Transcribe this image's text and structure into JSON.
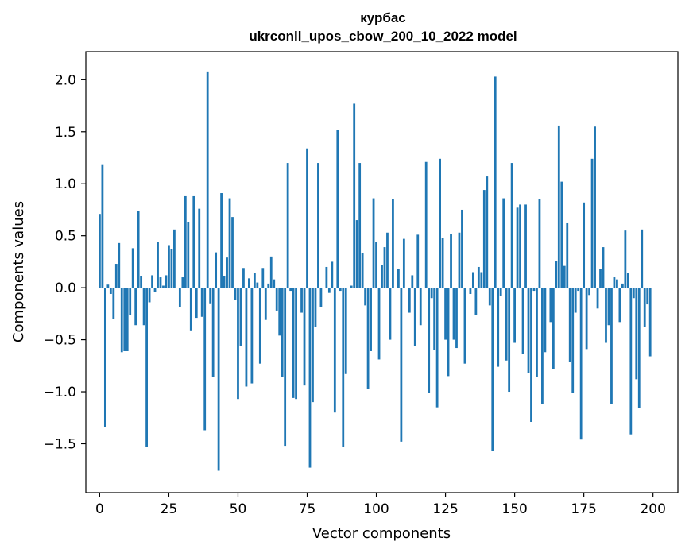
{
  "chart_data": {
    "type": "bar",
    "title_line1": "курбас",
    "title_line2": "ukrconll_upos_cbow_200_10_2022 model",
    "xlabel": "Vector components",
    "ylabel": "Components values",
    "xlim": [
      -5,
      209
    ],
    "ylim": [
      -1.97,
      2.27
    ],
    "xticks": [
      0,
      25,
      50,
      75,
      100,
      125,
      150,
      175,
      200
    ],
    "yticks": [
      -1.5,
      -1.0,
      -0.5,
      0.0,
      0.5,
      1.0,
      1.5,
      2.0
    ],
    "ytick_labels": [
      "−1.5",
      "−1.0",
      "−0.5",
      "0.0",
      "0.5",
      "1.0",
      "1.5",
      "2.0"
    ],
    "bar_color": "#1f77b4",
    "values": [
      0.71,
      1.18,
      -1.34,
      0.03,
      -0.06,
      -0.3,
      0.23,
      0.43,
      -0.62,
      -0.61,
      -0.61,
      -0.26,
      0.38,
      -0.36,
      0.74,
      0.11,
      -0.36,
      -1.53,
      -0.14,
      0.12,
      -0.04,
      0.44,
      0.1,
      0.02,
      0.12,
      0.41,
      0.37,
      0.56,
      0.0,
      -0.19,
      0.1,
      0.88,
      0.63,
      -0.41,
      0.88,
      -0.29,
      0.76,
      -0.28,
      -1.37,
      2.08,
      -0.15,
      -0.86,
      0.34,
      -1.76,
      0.91,
      0.11,
      0.29,
      0.86,
      0.68,
      -0.12,
      -1.07,
      -0.56,
      0.19,
      -0.95,
      0.09,
      -0.92,
      0.14,
      0.05,
      -0.73,
      0.19,
      -0.31,
      0.04,
      0.3,
      0.08,
      -0.22,
      -0.46,
      -0.86,
      -1.52,
      1.2,
      -0.03,
      -1.06,
      -1.07,
      0.0,
      -0.24,
      -0.94,
      1.34,
      -1.73,
      -1.1,
      -0.38,
      1.2,
      -0.19,
      0.0,
      0.2,
      -0.05,
      0.25,
      -1.2,
      1.52,
      -0.03,
      -1.53,
      -0.83,
      0.0,
      0.02,
      1.77,
      0.65,
      1.2,
      0.33,
      -0.17,
      -0.97,
      -0.61,
      0.86,
      0.44,
      -0.69,
      0.22,
      0.39,
      0.53,
      -0.5,
      0.85,
      0.0,
      0.18,
      -1.48,
      0.47,
      0.0,
      -0.24,
      0.12,
      -0.56,
      0.51,
      -0.36,
      0.0,
      1.21,
      -1.01,
      -0.1,
      -0.6,
      -1.15,
      1.24,
      0.48,
      -0.5,
      -0.85,
      0.52,
      -0.5,
      -0.58,
      0.53,
      0.75,
      -0.73,
      0.0,
      -0.06,
      0.15,
      -0.26,
      0.2,
      0.15,
      0.94,
      1.07,
      -0.17,
      -1.57,
      2.03,
      -0.76,
      -0.08,
      0.86,
      -0.7,
      -1.0,
      1.2,
      -0.53,
      0.77,
      0.8,
      -0.64,
      0.8,
      -0.82,
      -1.29,
      -0.03,
      -0.86,
      0.85,
      -1.12,
      -0.62,
      0.0,
      -0.33,
      -0.78,
      0.26,
      1.56,
      1.02,
      0.21,
      0.62,
      -0.71,
      -1.01,
      -0.24,
      -0.03,
      -1.46,
      0.82,
      -0.59,
      -0.07,
      1.24,
      1.55,
      -0.2,
      0.18,
      0.39,
      -0.53,
      -0.36,
      -1.12,
      0.1,
      0.08,
      -0.33,
      0.04,
      0.55,
      0.14,
      -1.41,
      -0.1,
      -0.88,
      -1.16,
      0.56,
      -0.38,
      -0.16,
      -0.66
    ]
  }
}
